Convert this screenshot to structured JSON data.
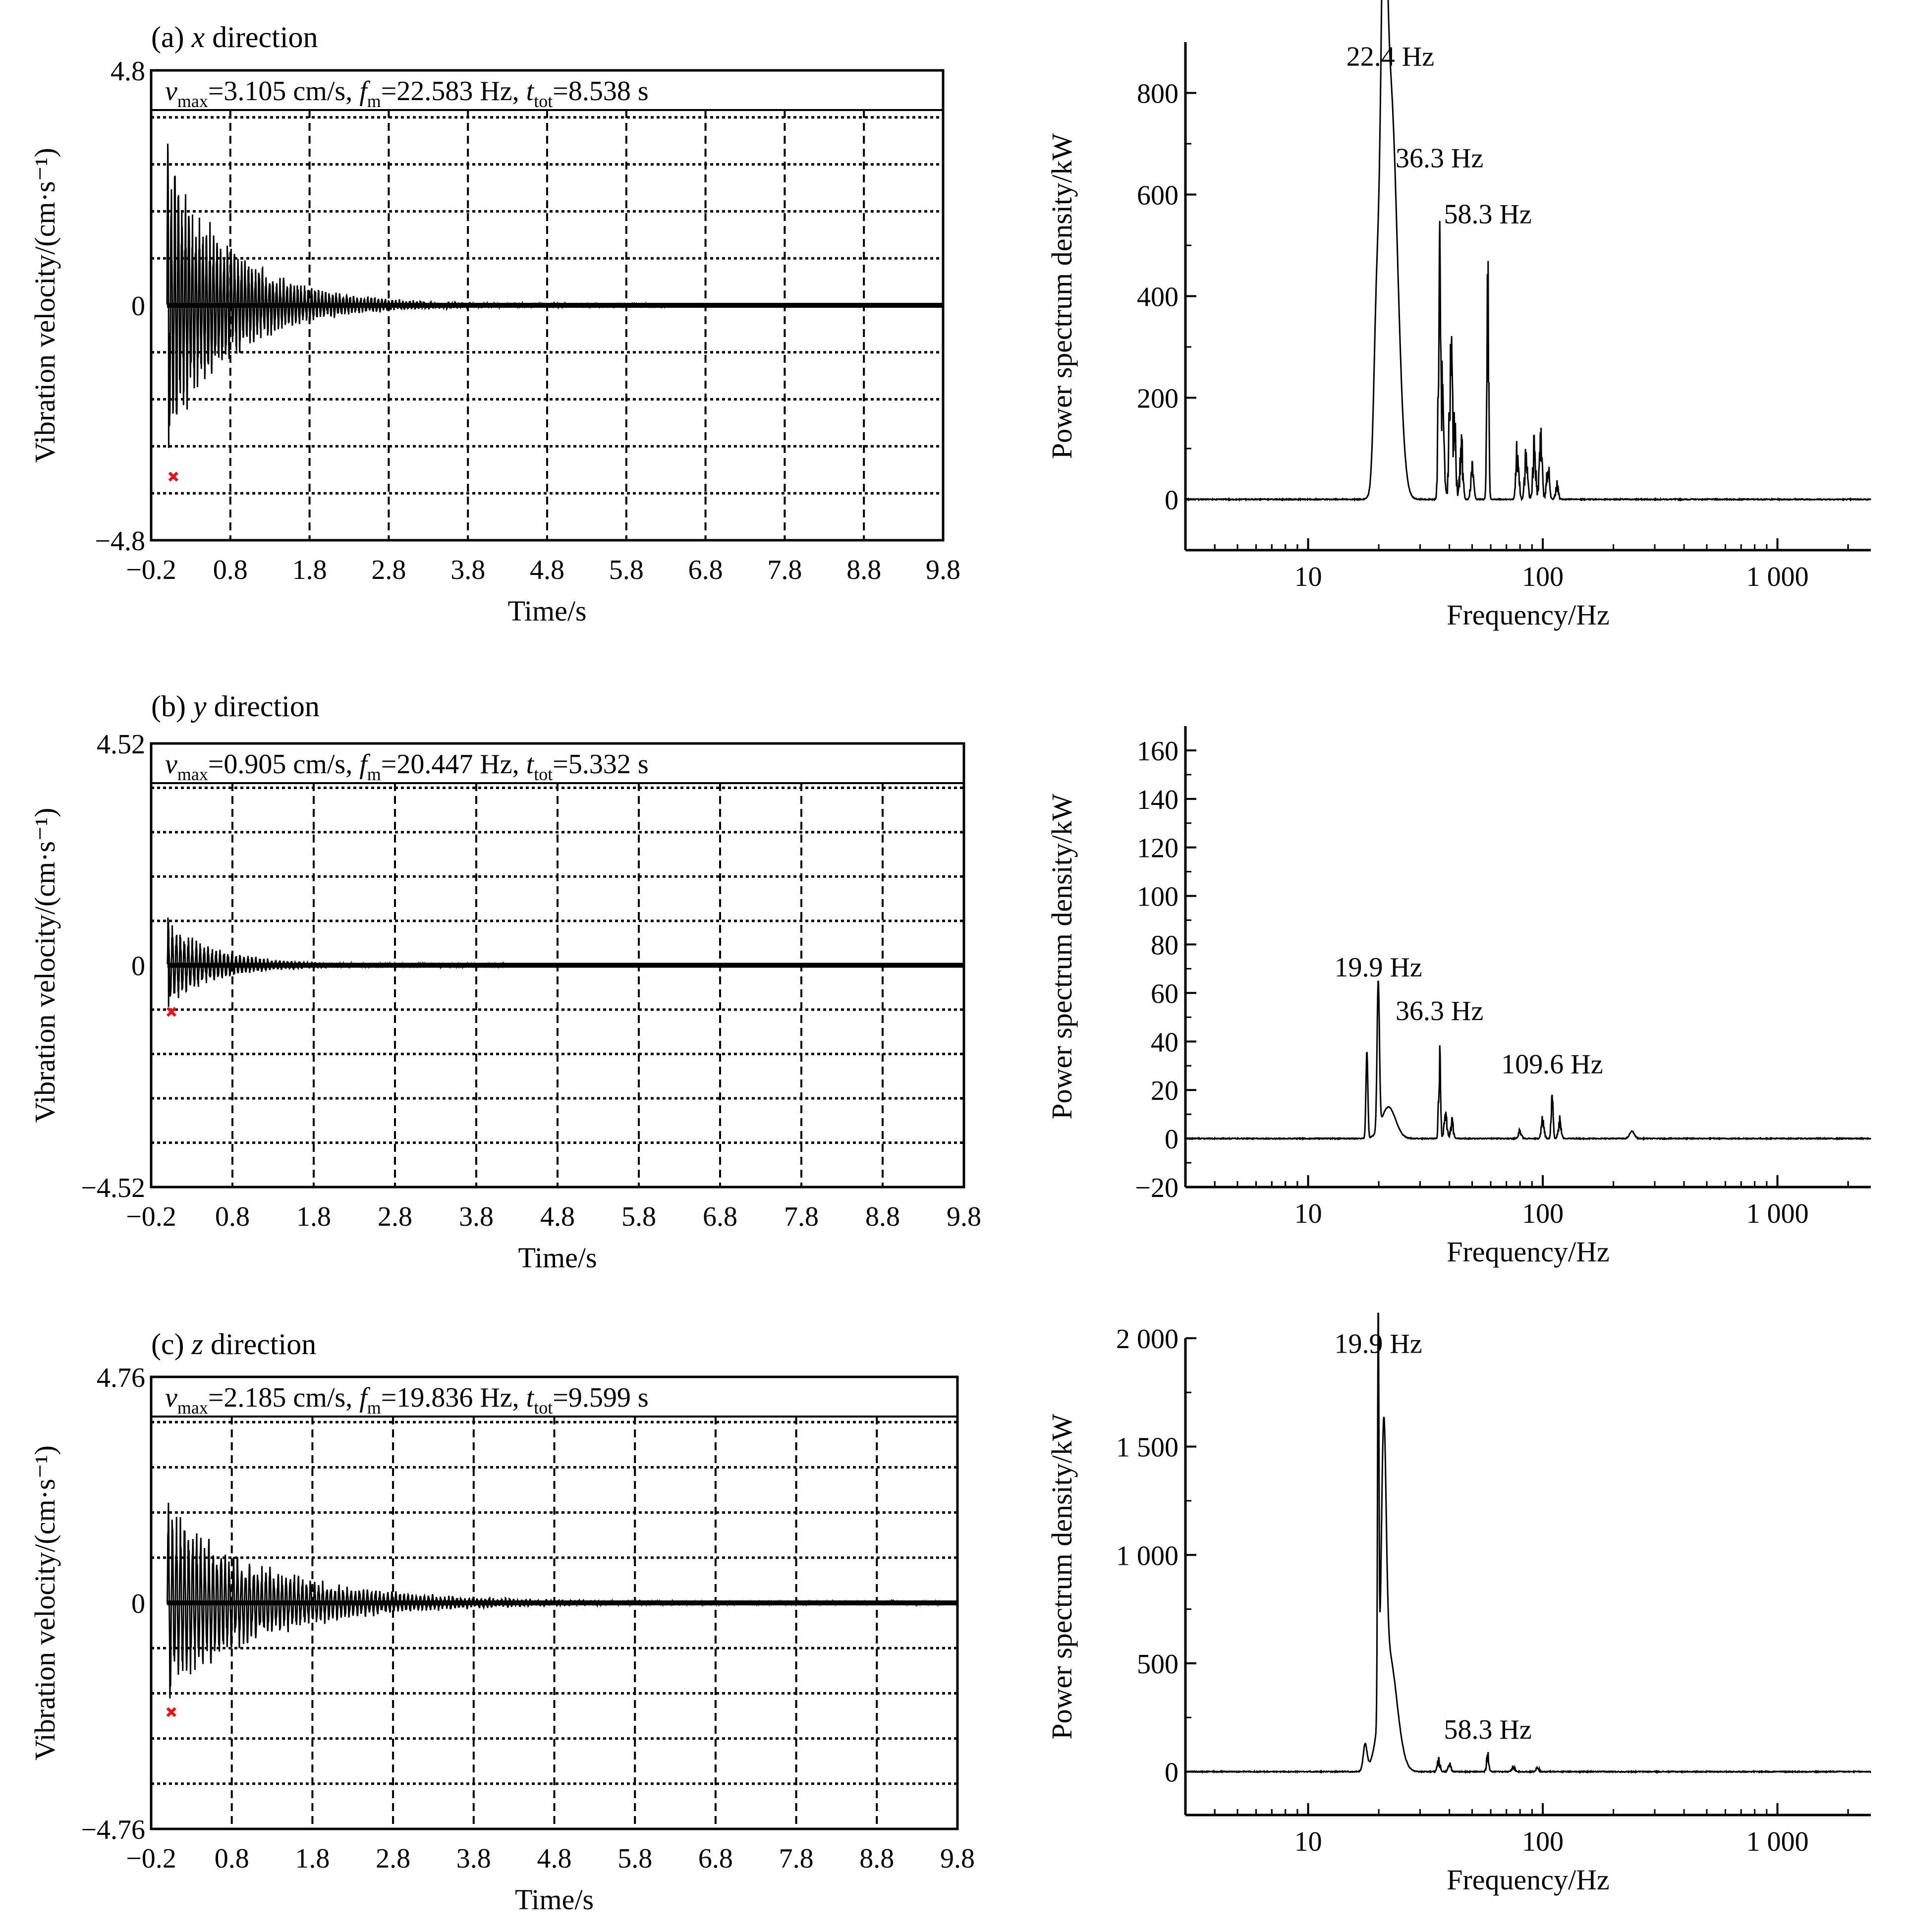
{
  "figure": {
    "background": "#ffffff",
    "line_color": "#000000",
    "marker_color": "#e8141c"
  },
  "chart_data": [
    {
      "type": "line",
      "panel": "(a) x direction",
      "title_prefix": "(a) ",
      "title_axis": "x",
      "title_suffix": " direction",
      "annotation": {
        "vmax": "3.105 cm/s",
        "fm": "22.583 Hz",
        "ttot": "8.538 s"
      },
      "xlabel": "Time/s",
      "ylabel": "Vibration velocity/(cm·s⁻¹)",
      "xlim": [
        -0.2,
        9.8
      ],
      "ylim": [
        -4.8,
        4.8
      ],
      "xticks": [
        -0.2,
        0.8,
        1.8,
        2.8,
        3.8,
        4.8,
        5.8,
        6.8,
        7.8,
        8.8,
        9.8
      ],
      "xtick_labels": [
        "−0.2",
        "0.8",
        "1.8",
        "2.8",
        "3.8",
        "4.8",
        "5.8",
        "6.8",
        "7.8",
        "8.8",
        "9.8"
      ],
      "yticks": [
        -4.8,
        0,
        4.8
      ],
      "ytick_labels": [
        "−4.8",
        "0",
        "4.8"
      ],
      "grid": "dashed vertical at x ticks, dotted horizontal",
      "signal": {
        "peak_pos": 3.3,
        "peak_neg": -2.9,
        "decay_s": 0.85,
        "freq_hz": 22.583,
        "tail_end_s": 6.3
      },
      "min_marker": {
        "x": 0.08,
        "y": -3.5
      }
    },
    {
      "type": "line",
      "panel": "(b) y direction",
      "title_prefix": "(b) ",
      "title_axis": "y",
      "title_suffix": " direction",
      "annotation": {
        "vmax": "0.905 cm/s",
        "fm": "20.447 Hz",
        "ttot": "5.332 s"
      },
      "xlabel": "Time/s",
      "ylabel": "Vibration velocity/(cm·s⁻¹)",
      "xlim": [
        -0.2,
        9.8
      ],
      "ylim": [
        -4.52,
        4.52
      ],
      "xticks": [
        -0.2,
        0.8,
        1.8,
        2.8,
        3.8,
        4.8,
        5.8,
        6.8,
        7.8,
        8.8,
        9.8
      ],
      "xtick_labels": [
        "−0.2",
        "0.8",
        "1.8",
        "2.8",
        "3.8",
        "4.8",
        "5.8",
        "6.8",
        "7.8",
        "8.8",
        "9.8"
      ],
      "yticks": [
        -4.52,
        0,
        4.52
      ],
      "ytick_labels": [
        "−4.52",
        "0",
        "4.52"
      ],
      "grid": "dashed vertical at x ticks, dotted horizontal",
      "signal": {
        "peak_pos": 0.95,
        "peak_neg": -0.85,
        "decay_s": 0.6,
        "freq_hz": 20.447,
        "tail_end_s": 4.2
      },
      "min_marker": {
        "x": 0.05,
        "y": -0.95
      }
    },
    {
      "type": "line",
      "panel": "(c) z direction",
      "title_prefix": "(c) ",
      "title_axis": "z",
      "title_suffix": " direction",
      "annotation": {
        "vmax": "2.185 cm/s",
        "fm": "19.836 Hz",
        "ttot": "9.599 s"
      },
      "xlabel": "Time/s",
      "ylabel": "Vibration velocity/(cm·s⁻¹)",
      "xlim": [
        -0.2,
        9.8
      ],
      "ylim": [
        -4.76,
        4.76
      ],
      "xticks": [
        -0.2,
        0.8,
        1.8,
        2.8,
        3.8,
        4.8,
        5.8,
        6.8,
        7.8,
        8.8,
        9.8
      ],
      "xtick_labels": [
        "−0.2",
        "0.8",
        "1.8",
        "2.8",
        "3.8",
        "4.8",
        "5.8",
        "6.8",
        "7.8",
        "8.8",
        "9.8"
      ],
      "yticks": [
        -4.76,
        0,
        4.76
      ],
      "ytick_labels": [
        "−4.76",
        "0",
        "4.76"
      ],
      "grid": "dashed vertical at x ticks, dotted horizontal",
      "signal": {
        "peak_pos": 2.1,
        "peak_neg": -2.0,
        "decay_s": 1.3,
        "freq_hz": 19.836,
        "tail_end_s": 9.6
      },
      "min_marker": {
        "x": 0.05,
        "y": -2.3
      }
    },
    {
      "type": "line",
      "panel": "PSD x",
      "xscale": "log",
      "xlabel": "Frequency/Hz",
      "ylabel": "Power spectrum density/kW",
      "xlim": [
        3,
        2500
      ],
      "ylim": [
        -100,
        900
      ],
      "xticks": [
        10,
        100,
        1000
      ],
      "xtick_labels": [
        "10",
        "100",
        "1 000"
      ],
      "yticks": [
        0,
        200,
        400,
        600,
        800
      ],
      "ytick_labels": [
        "0",
        "200",
        "400",
        "600",
        "800"
      ],
      "grid": "none",
      "peaks": [
        {
          "f": 19.6,
          "v": 300,
          "w": 0.012
        },
        {
          "f": 21.0,
          "v": 720,
          "w": 0.012
        },
        {
          "f": 22.4,
          "v": 810,
          "w": 0.03
        },
        {
          "f": 36.3,
          "v": 610,
          "w": 0.005
        },
        {
          "f": 37.5,
          "v": 260,
          "w": 0.006
        },
        {
          "f": 40.5,
          "v": 420,
          "w": 0.006
        },
        {
          "f": 42.0,
          "v": 200,
          "w": 0.006
        },
        {
          "f": 45.0,
          "v": 150,
          "w": 0.006
        },
        {
          "f": 50.0,
          "v": 80,
          "w": 0.006
        },
        {
          "f": 58.3,
          "v": 520,
          "w": 0.004
        },
        {
          "f": 78.0,
          "v": 150,
          "w": 0.006
        },
        {
          "f": 85.0,
          "v": 120,
          "w": 0.006
        },
        {
          "f": 92.0,
          "v": 140,
          "w": 0.006
        },
        {
          "f": 98.0,
          "v": 150,
          "w": 0.006
        },
        {
          "f": 105.0,
          "v": 100,
          "w": 0.006
        },
        {
          "f": 115.0,
          "v": 40,
          "w": 0.006
        }
      ],
      "annotations": [
        {
          "text": "22.4 Hz",
          "f": 22.4,
          "v": 840
        },
        {
          "text": "36.3 Hz",
          "f": 36.3,
          "v": 640
        },
        {
          "text": "58.3 Hz",
          "f": 58.3,
          "v": 530
        }
      ]
    },
    {
      "type": "line",
      "panel": "PSD y",
      "xscale": "log",
      "xlabel": "Frequency/Hz",
      "ylabel": "Power spectrum density/kW",
      "xlim": [
        3,
        2500
      ],
      "ylim": [
        -20,
        170
      ],
      "xticks": [
        10,
        100,
        1000
      ],
      "xtick_labels": [
        "10",
        "100",
        "1 000"
      ],
      "yticks": [
        -20,
        0,
        20,
        40,
        60,
        80,
        100,
        120,
        140,
        160
      ],
      "ytick_labels": [
        "−20",
        "0",
        "20",
        "40",
        "60",
        "80",
        "100",
        "120",
        "140",
        "160"
      ],
      "grid": "none",
      "peaks": [
        {
          "f": 17.8,
          "v": 36,
          "w": 0.004
        },
        {
          "f": 19.9,
          "v": 61,
          "w": 0.005
        },
        {
          "f": 22.0,
          "v": 13,
          "w": 0.03
        },
        {
          "f": 36.3,
          "v": 45,
          "w": 0.004
        },
        {
          "f": 38.5,
          "v": 12,
          "w": 0.006
        },
        {
          "f": 41.0,
          "v": 9,
          "w": 0.006
        },
        {
          "f": 80.0,
          "v": 5,
          "w": 0.006
        },
        {
          "f": 100.0,
          "v": 12,
          "w": 0.006
        },
        {
          "f": 109.6,
          "v": 23,
          "w": 0.004
        },
        {
          "f": 118.0,
          "v": 10,
          "w": 0.006
        },
        {
          "f": 240.0,
          "v": 3,
          "w": 0.01
        }
      ],
      "annotations": [
        {
          "text": "19.9 Hz",
          "f": 19.9,
          "v": 64
        },
        {
          "text": "36.3 Hz",
          "f": 36.3,
          "v": 46
        },
        {
          "text": "109.6 Hz",
          "f": 109.6,
          "v": 24
        }
      ]
    },
    {
      "type": "line",
      "panel": "PSD z",
      "xscale": "log",
      "xlabel": "Frequency/Hz",
      "ylabel": "Power spectrum density/kW",
      "xlim": [
        3,
        2500
      ],
      "ylim": [
        -200,
        2000
      ],
      "xticks": [
        10,
        100,
        1000
      ],
      "xtick_labels": [
        "10",
        "100",
        "1 000"
      ],
      "yticks": [
        0,
        500,
        1000,
        1500,
        2000
      ],
      "ytick_labels": [
        "0",
        "500",
        "1 000",
        "1 500",
        "2 000"
      ],
      "grid": "none",
      "peaks": [
        {
          "f": 17.5,
          "v": 120,
          "w": 0.008
        },
        {
          "f": 19.9,
          "v": 1850,
          "w": 0.003
        },
        {
          "f": 21.0,
          "v": 1170,
          "w": 0.01
        },
        {
          "f": 22.0,
          "v": 550,
          "w": 0.035
        },
        {
          "f": 36.0,
          "v": 70,
          "w": 0.006
        },
        {
          "f": 40.0,
          "v": 50,
          "w": 0.006
        },
        {
          "f": 58.3,
          "v": 110,
          "w": 0.005
        },
        {
          "f": 75.0,
          "v": 35,
          "w": 0.006
        },
        {
          "f": 95.0,
          "v": 30,
          "w": 0.006
        }
      ],
      "annotations": [
        {
          "text": "19.9 Hz",
          "f": 19.9,
          "v": 1900
        },
        {
          "text": "58.3 Hz",
          "f": 58.3,
          "v": 120
        }
      ]
    }
  ]
}
